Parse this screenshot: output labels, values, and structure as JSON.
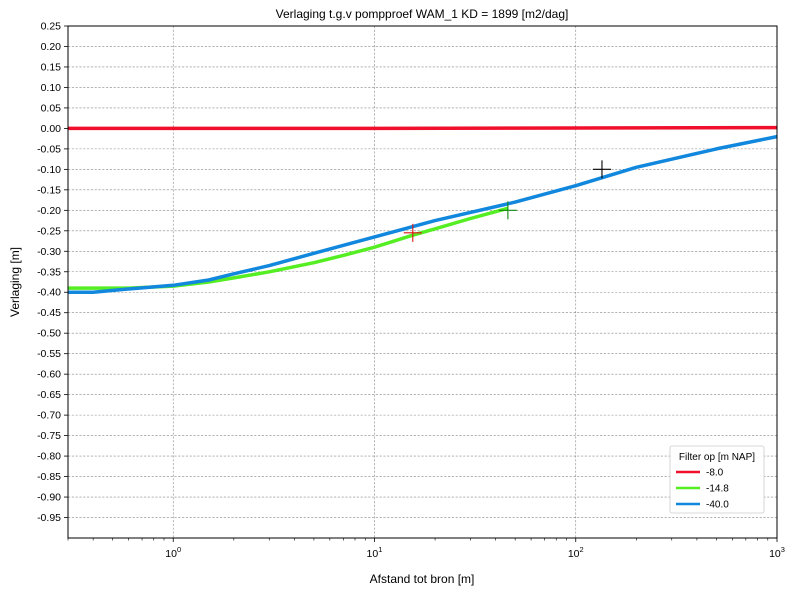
{
  "chart_data": {
    "type": "line",
    "title": "Verlaging t.g.v pompproef WAM_1  KD = 1899 [m2/dag]",
    "xlabel": "Afstand tot bron [m]",
    "ylabel": "Verlaging [m]",
    "xscale": "log",
    "xlim": [
      0.3,
      1000
    ],
    "ylim": [
      -1.0,
      0.25
    ],
    "x_ticks": [
      1,
      10,
      100,
      1000
    ],
    "x_tick_labels": [
      {
        "base": "10",
        "exp": "0"
      },
      {
        "base": "10",
        "exp": "1"
      },
      {
        "base": "10",
        "exp": "2"
      },
      {
        "base": "10",
        "exp": "3"
      }
    ],
    "y_ticks": [
      0.25,
      0.2,
      0.15,
      0.1,
      0.05,
      0.0,
      -0.05,
      -0.1,
      -0.15,
      -0.2,
      -0.25,
      -0.3,
      -0.35,
      -0.4,
      -0.45,
      -0.5,
      -0.55,
      -0.6,
      -0.65,
      -0.7,
      -0.75,
      -0.8,
      -0.85,
      -0.9,
      -0.95
    ],
    "y_tick_labels": [
      "0.25",
      "0.20",
      "0.15",
      "0.10",
      "0.05",
      "0.00",
      "-0.05",
      "-0.10",
      "-0.15",
      "-0.20",
      "-0.25",
      "-0.30",
      "-0.35",
      "-0.40",
      "-0.45",
      "-0.50",
      "-0.55",
      "-0.60",
      "-0.65",
      "-0.70",
      "-0.75",
      "-0.80",
      "-0.85",
      "-0.90",
      "-0.95"
    ],
    "grid": true,
    "legend": {
      "title": "Filter op [m NAP]",
      "placement": "lower-right"
    },
    "series": [
      {
        "name": "-8.0",
        "color": "#f0102c",
        "x": [
          0.3,
          1,
          10,
          100,
          1000
        ],
        "y": [
          0.0,
          0.0,
          0.0,
          0.001,
          0.002
        ]
      },
      {
        "name": "-14.8",
        "color": "#55ee22",
        "x": [
          0.3,
          0.6,
          1.0,
          1.5,
          2.0,
          3.0,
          5.0,
          7.0,
          10.0,
          15.0,
          20.0,
          30.0,
          46.0
        ],
        "y": [
          -0.39,
          -0.39,
          -0.385,
          -0.375,
          -0.365,
          -0.35,
          -0.328,
          -0.31,
          -0.29,
          -0.263,
          -0.245,
          -0.22,
          -0.195
        ]
      },
      {
        "name": "-40.0",
        "color": "#1188dd",
        "x": [
          0.3,
          0.4,
          0.6,
          1.0,
          1.5,
          2.0,
          3.0,
          5.0,
          10.0,
          20.0,
          50.0,
          100.0,
          200.0,
          500.0,
          1000.0
        ],
        "y": [
          -0.4,
          -0.4,
          -0.392,
          -0.383,
          -0.37,
          -0.355,
          -0.335,
          -0.305,
          -0.265,
          -0.225,
          -0.18,
          -0.14,
          -0.095,
          -0.05,
          -0.02
        ]
      }
    ],
    "markers": [
      {
        "x": 15.5,
        "y": -0.255,
        "color": "#dd1111"
      },
      {
        "x": 46.0,
        "y": -0.2,
        "color": "#118811"
      },
      {
        "x": 135.0,
        "y": -0.1,
        "color": "#000000"
      }
    ]
  }
}
